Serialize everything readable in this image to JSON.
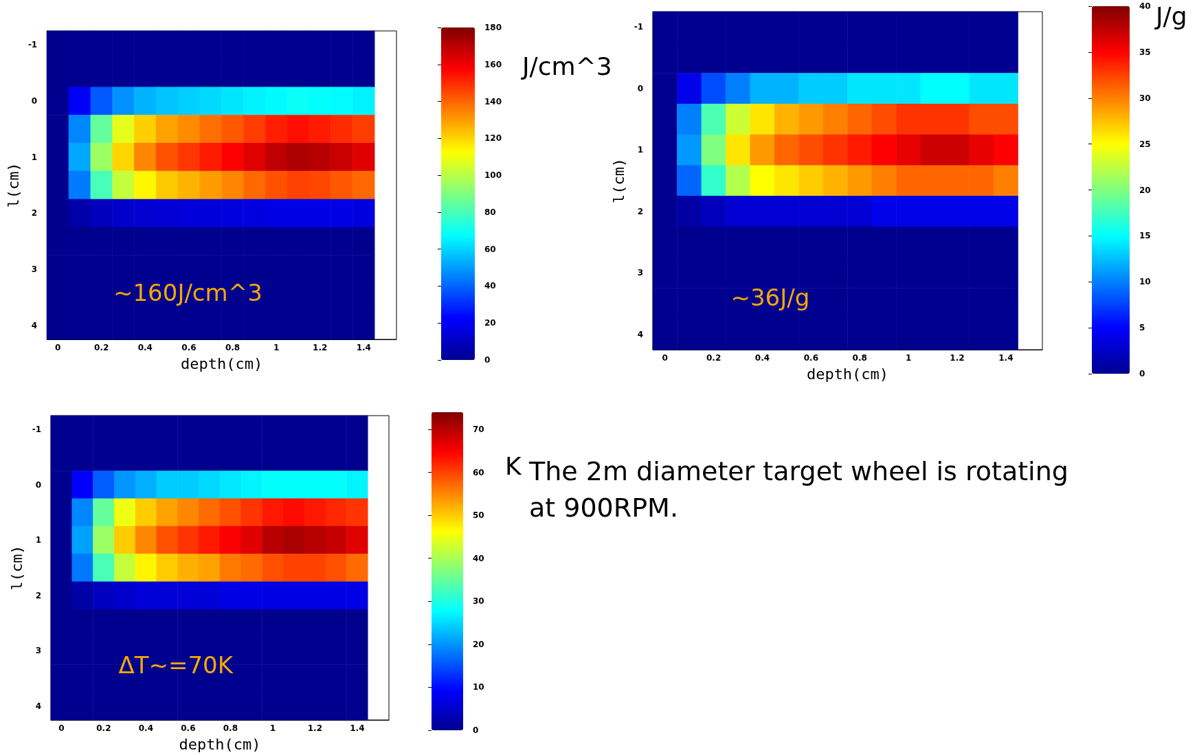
{
  "chart_data": [
    {
      "type": "heatmap",
      "xlabel": "depth(cm)",
      "ylabel": "l(cm)",
      "clabel": "J/cm^3",
      "annotations": [
        "~160J/cm^3"
      ],
      "categories": [
        "0",
        null,
        "0.2",
        null,
        "0.4",
        null,
        "0.6",
        null,
        "0.8",
        null,
        "1",
        null,
        "1.2",
        null,
        "1.4",
        null
      ],
      "y_categories": [
        "-1",
        null,
        "0",
        null,
        "1",
        null,
        "2",
        null,
        "3",
        null,
        "4"
      ],
      "clim": [
        0,
        180
      ],
      "cticks": [
        0,
        20,
        40,
        60,
        80,
        100,
        120,
        140,
        160,
        180
      ],
      "cells": [
        [
          0,
          0,
          0,
          0,
          0,
          0,
          0,
          0,
          0,
          0,
          0,
          0,
          0,
          0,
          0,
          null
        ],
        [
          0,
          0,
          0,
          0,
          0,
          0,
          0,
          0,
          0,
          0,
          0,
          0,
          0,
          0,
          0,
          null
        ],
        [
          0,
          21,
          38,
          48,
          54,
          57,
          59,
          61,
          63,
          65,
          67,
          69,
          68,
          67,
          65,
          null
        ],
        [
          0,
          46,
          85,
          108,
          121,
          129,
          133,
          138,
          142,
          147,
          152,
          155,
          153,
          150,
          147,
          null
        ],
        [
          0,
          52,
          95,
          120,
          134,
          143,
          148,
          153,
          158,
          163,
          169,
          172,
          170,
          167,
          163,
          null
        ],
        [
          0,
          44,
          80,
          102,
          114,
          122,
          126,
          130,
          134,
          139,
          143,
          146,
          145,
          142,
          139,
          null
        ],
        [
          0,
          5,
          9,
          12,
          13,
          14,
          15,
          15,
          16,
          16,
          17,
          17,
          17,
          17,
          16,
          null
        ],
        [
          0,
          0,
          0,
          0,
          0,
          0,
          0,
          0,
          0,
          0,
          0,
          0,
          0,
          0,
          0,
          null
        ],
        [
          0,
          0,
          0,
          0,
          0,
          0,
          0,
          0,
          0,
          0,
          0,
          0,
          0,
          0,
          0,
          null
        ],
        [
          0,
          0,
          0,
          0,
          0,
          0,
          0,
          0,
          0,
          0,
          0,
          0,
          0,
          0,
          0,
          null
        ],
        [
          0,
          0,
          0,
          0,
          0,
          0,
          0,
          0,
          0,
          0,
          0,
          0,
          0,
          0,
          0,
          null
        ]
      ]
    },
    {
      "type": "heatmap",
      "xlabel": "depth(cm)",
      "ylabel": "l(cm)",
      "clabel": "J/g",
      "annotations": [
        "~36J/g"
      ],
      "categories": [
        "0",
        null,
        "0.2",
        null,
        "0.4",
        null,
        "0.6",
        null,
        "0.8",
        null,
        "1",
        null,
        "1.2",
        null,
        "1.4",
        null
      ],
      "y_categories": [
        "-1",
        null,
        "0",
        null,
        "1",
        null,
        "2",
        null,
        "3",
        null,
        "4"
      ],
      "clim": [
        0,
        40
      ],
      "cticks": [
        0,
        5,
        10,
        15,
        20,
        25,
        30,
        35,
        40
      ],
      "cells": [
        [
          0,
          0,
          0,
          0,
          0,
          0,
          0,
          0,
          0,
          0,
          0,
          0,
          0,
          0,
          0,
          null
        ],
        [
          0,
          0,
          0,
          0,
          0,
          0,
          0,
          0,
          0,
          0,
          0,
          0,
          0,
          0,
          0,
          null
        ],
        [
          0,
          4,
          8,
          10,
          12,
          12,
          13,
          13,
          14,
          14,
          14,
          15,
          15,
          14,
          14,
          null
        ],
        [
          0,
          10,
          18,
          23,
          26,
          28,
          29,
          30,
          31,
          32,
          33,
          33,
          33,
          32,
          32,
          null
        ],
        [
          0,
          11,
          20,
          26,
          29,
          31,
          32,
          33,
          34,
          35,
          36,
          37,
          37,
          36,
          35,
          null
        ],
        [
          0,
          9,
          17,
          22,
          25,
          26,
          27,
          28,
          29,
          30,
          31,
          31,
          31,
          31,
          30,
          null
        ],
        [
          0,
          1,
          2,
          3,
          3,
          3,
          3,
          3,
          3,
          4,
          4,
          4,
          4,
          4,
          4,
          null
        ],
        [
          0,
          0,
          0,
          0,
          0,
          0,
          0,
          0,
          0,
          0,
          0,
          0,
          0,
          0,
          0,
          null
        ],
        [
          0,
          0,
          0,
          0,
          0,
          0,
          0,
          0,
          0,
          0,
          0,
          0,
          0,
          0,
          0,
          null
        ],
        [
          0,
          0,
          0,
          0,
          0,
          0,
          0,
          0,
          0,
          0,
          0,
          0,
          0,
          0,
          0,
          null
        ],
        [
          0,
          0,
          0,
          0,
          0,
          0,
          0,
          0,
          0,
          0,
          0,
          0,
          0,
          0,
          0,
          null
        ]
      ]
    },
    {
      "type": "heatmap",
      "xlabel": "depth(cm)",
      "ylabel": "l(cm)",
      "clabel": "K",
      "annotations": [
        "ΔT~=70K"
      ],
      "categories": [
        "0",
        null,
        "0.2",
        null,
        "0.4",
        null,
        "0.6",
        null,
        "0.8",
        null,
        "1",
        null,
        "1.2",
        null,
        "1.4",
        null
      ],
      "y_categories": [
        "-1",
        null,
        "0",
        null,
        "1",
        null,
        "2",
        null,
        "3",
        null,
        "4"
      ],
      "clim": [
        0,
        74
      ],
      "cticks": [
        0,
        10,
        20,
        30,
        40,
        50,
        60,
        70
      ],
      "cells": [
        [
          0,
          0,
          0,
          0,
          0,
          0,
          0,
          0,
          0,
          0,
          0,
          0,
          0,
          0,
          0,
          null
        ],
        [
          0,
          0,
          0,
          0,
          0,
          0,
          0,
          0,
          0,
          0,
          0,
          0,
          0,
          0,
          0,
          null
        ],
        [
          0,
          9,
          16,
          20,
          22,
          24,
          24,
          25,
          26,
          27,
          28,
          28,
          28,
          28,
          27,
          null
        ],
        [
          0,
          19,
          35,
          45,
          50,
          53,
          55,
          57,
          59,
          61,
          63,
          64,
          63,
          62,
          61,
          null
        ],
        [
          0,
          21,
          39,
          50,
          55,
          59,
          61,
          63,
          65,
          67,
          70,
          71,
          70,
          69,
          67,
          null
        ],
        [
          0,
          18,
          33,
          42,
          47,
          50,
          52,
          53,
          56,
          57,
          59,
          60,
          60,
          59,
          57,
          null
        ],
        [
          0,
          2,
          4,
          5,
          6,
          6,
          6,
          6,
          7,
          7,
          7,
          7,
          7,
          7,
          7,
          null
        ],
        [
          0,
          0,
          0,
          0,
          0,
          0,
          0,
          0,
          0,
          0,
          0,
          0,
          0,
          0,
          0,
          null
        ],
        [
          0,
          0,
          0,
          0,
          0,
          0,
          0,
          0,
          0,
          0,
          0,
          0,
          0,
          0,
          0,
          null
        ],
        [
          0,
          0,
          0,
          0,
          0,
          0,
          0,
          0,
          0,
          0,
          0,
          0,
          0,
          0,
          0,
          null
        ],
        [
          0,
          0,
          0,
          0,
          0,
          0,
          0,
          0,
          0,
          0,
          0,
          0,
          0,
          0,
          0,
          null
        ]
      ]
    },
    {
      "type": "other",
      "annotations": [
        "The 2m diameter target wheel is rotating at 900RPM."
      ]
    }
  ]
}
